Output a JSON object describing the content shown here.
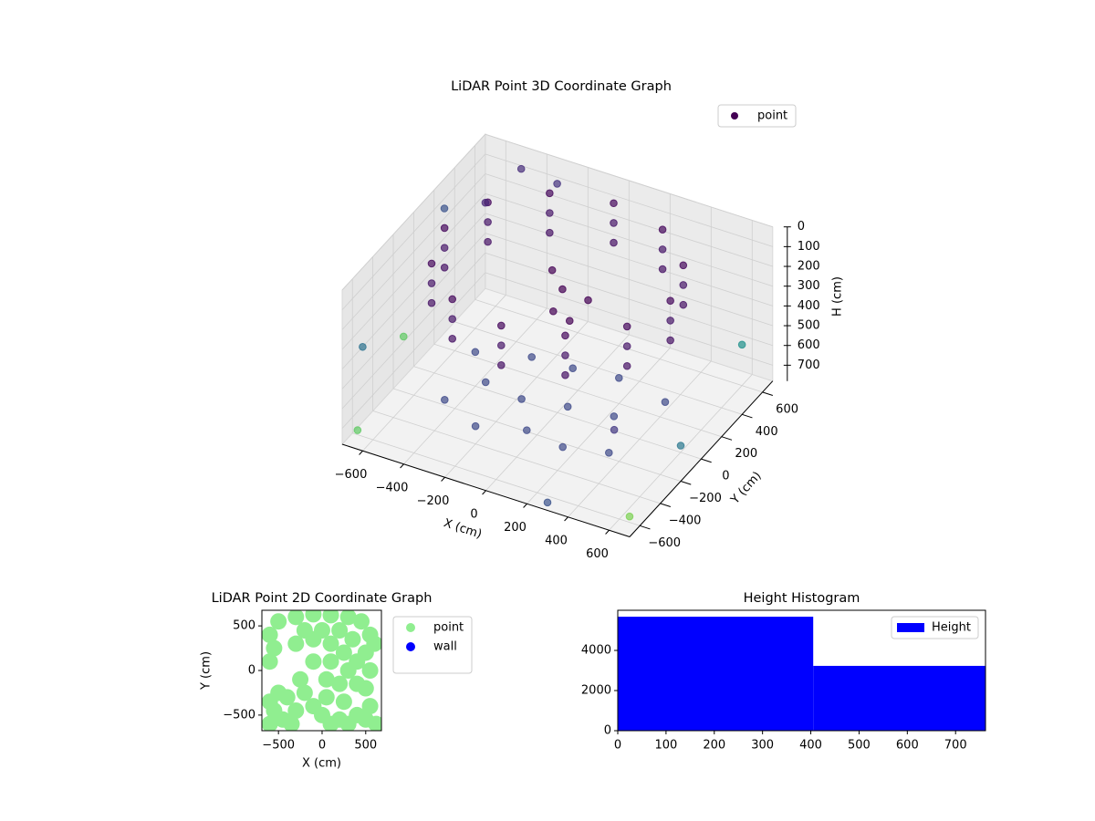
{
  "chart_data": [
    {
      "type": "scatter3d",
      "title": "LiDAR Point 3D Coordinate Graph",
      "xlabel": "X (cm)",
      "ylabel": "Y (cm)",
      "zlabel": "H (cm)",
      "xlim": [
        -700,
        700
      ],
      "ylim": [
        -700,
        700
      ],
      "zlim": [
        780,
        0
      ],
      "xticks": [
        {
          "value": -600,
          "label": "−600"
        },
        {
          "value": -400,
          "label": "−400"
        },
        {
          "value": -200,
          "label": "−200"
        },
        0,
        200,
        400,
        600
      ],
      "yticks": [
        {
          "value": -600,
          "label": "−600"
        },
        {
          "value": -400,
          "label": "−400"
        },
        {
          "value": -200,
          "label": "−200"
        },
        0,
        200,
        400,
        600
      ],
      "zticks": [
        0,
        100,
        200,
        300,
        400,
        500,
        600,
        700
      ],
      "legend": "upper right",
      "grid": true,
      "series": [
        {
          "name": "point",
          "color": "#440154",
          "x": [
            550,
            476,
            275,
            0,
            -275,
            -476,
            -550,
            -476,
            -275,
            0,
            275,
            476,
            550,
            476,
            275,
            0,
            -275,
            -476,
            -550,
            -476,
            -275,
            0,
            275,
            476,
            550,
            476,
            275,
            0,
            -275,
            -476,
            -550,
            -476,
            -275,
            0,
            275,
            476,
            -400,
            -200,
            0,
            200,
            400,
            -300,
            -100,
            100,
            300,
            -200,
            0,
            200,
            -450,
            450,
            -150,
            -100,
            -120,
            -80,
            0,
            -650,
            -700,
            -500,
            -300,
            650,
            700,
            650,
            -650,
            600,
            -600,
            300,
            -700
          ],
          "y": [
            0,
            275,
            476,
            550,
            476,
            275,
            0,
            -275,
            -476,
            -550,
            -476,
            -275,
            0,
            275,
            476,
            550,
            476,
            275,
            0,
            -275,
            -476,
            -550,
            -476,
            -275,
            0,
            275,
            476,
            550,
            476,
            275,
            0,
            -275,
            -476,
            -550,
            -476,
            -275,
            -300,
            -400,
            -300,
            -350,
            -300,
            -100,
            -150,
            -100,
            -50,
            150,
            150,
            200,
            100,
            150,
            250,
            250,
            200,
            280,
            300,
            -650,
            300,
            650,
            600,
            -600,
            -200,
            500,
            -200,
            -650,
            500,
            -700,
            -500
          ],
          "z": [
            30,
            30,
            30,
            30,
            30,
            30,
            30,
            30,
            30,
            30,
            30,
            30,
            130,
            130,
            130,
            130,
            130,
            130,
            130,
            130,
            130,
            130,
            130,
            130,
            230,
            230,
            230,
            230,
            230,
            230,
            230,
            230,
            230,
            230,
            230,
            230,
            680,
            690,
            700,
            690,
            680,
            670,
            660,
            660,
            670,
            650,
            640,
            650,
            680,
            660,
            250,
            330,
            420,
            500,
            380,
            720,
            150,
            80,
            60,
            750,
            600,
            500,
            500,
            300,
            200,
            740,
            400
          ],
          "colors": [
            "#46085c",
            "#46085c",
            "#46085c",
            "#46085c",
            "#46085c",
            "#46085c",
            "#46085c",
            "#46085c",
            "#46085c",
            "#46085c",
            "#46085c",
            "#46085c",
            "#48186a",
            "#48186a",
            "#48186a",
            "#48186a",
            "#48186a",
            "#48186a",
            "#48186a",
            "#48186a",
            "#48186a",
            "#48186a",
            "#48186a",
            "#48186a",
            "#471365",
            "#471365",
            "#471365",
            "#471365",
            "#471365",
            "#471365",
            "#471365",
            "#471365",
            "#471365",
            "#471365",
            "#471365",
            "#471365",
            "#3e4a89",
            "#3e4a89",
            "#3e4a89",
            "#3e4a89",
            "#3e4a89",
            "#3e4a89",
            "#3e4a89",
            "#3e4a89",
            "#3e4a89",
            "#3e4a89",
            "#3e4a89",
            "#3e4a89",
            "#3e4a89",
            "#3e4a89",
            "#440154",
            "#440154",
            "#440154",
            "#440154",
            "#440154",
            "#5ec962",
            "#3b528b",
            "#472d7b",
            "#46337f",
            "#7ad151",
            "#2a788e",
            "#21918c",
            "#5ec962",
            "#443983",
            "#482878",
            "#3b528b",
            "#2c728e"
          ]
        }
      ]
    },
    {
      "type": "scatter",
      "title": "LiDAR Point 2D Coordinate Graph",
      "xlabel": "X (cm)",
      "ylabel": "Y (cm)",
      "xlim": [
        -690,
        680
      ],
      "ylim": [
        -675,
        675
      ],
      "xticks": [
        {
          "value": -500,
          "label": "−500"
        },
        0,
        500
      ],
      "yticks": [
        {
          "value": -500,
          "label": "−500"
        },
        0,
        500
      ],
      "legend": "outside right",
      "series": [
        {
          "name": "point",
          "color": "#90ee90",
          "x": [
            -600,
            -550,
            -600,
            -450,
            -350,
            -300,
            -500,
            -400,
            -200,
            -100,
            0,
            100,
            200,
            300,
            400,
            500,
            550,
            500,
            550,
            500,
            550,
            450,
            300,
            100,
            -100,
            -300,
            -500,
            -600,
            -550,
            -600,
            -300,
            -100,
            100,
            250,
            300,
            200,
            50,
            -100,
            100,
            -200,
            0,
            200,
            350,
            400,
            400,
            250,
            50,
            -250,
            600,
            620
          ],
          "y": [
            -350,
            -450,
            -600,
            -550,
            -600,
            -450,
            -250,
            -300,
            -250,
            -400,
            -500,
            -600,
            -550,
            -600,
            -500,
            -550,
            -400,
            -200,
            0,
            200,
            400,
            550,
            600,
            620,
            630,
            600,
            550,
            400,
            250,
            100,
            300,
            350,
            300,
            200,
            0,
            -150,
            -100,
            100,
            100,
            450,
            450,
            450,
            350,
            100,
            -150,
            -350,
            -300,
            -100,
            300,
            -600
          ]
        },
        {
          "name": "wall",
          "color": "#0000ff",
          "x": [],
          "y": []
        }
      ]
    },
    {
      "type": "histogram",
      "title": "Height Histogram",
      "xlim": [
        0,
        762
      ],
      "ylim": [
        0,
        6000
      ],
      "xticks": [
        0,
        100,
        200,
        300,
        400,
        500,
        600,
        700
      ],
      "yticks": [
        0,
        2000,
        4000
      ],
      "legend": "upper right",
      "bins": [
        0,
        405,
        810
      ],
      "series": [
        {
          "name": "Height",
          "color": "#0000ff",
          "values": [
            5680,
            3230
          ]
        }
      ]
    }
  ]
}
